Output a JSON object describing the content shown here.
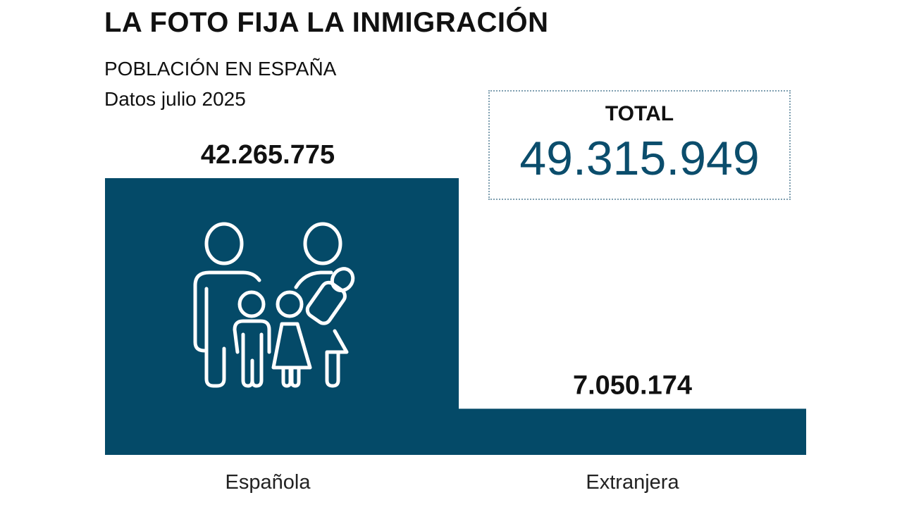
{
  "title": "LA FOTO FIJA LA INMIGRACIÓN",
  "subtitle": "POBLACIÓN EN ESPAÑA",
  "date_note": "Datos julio 2025",
  "total": {
    "label": "TOTAL",
    "value": "49.315.949"
  },
  "colors": {
    "bar": "#044a68",
    "total_value": "#0b4d6c"
  },
  "chart_data": {
    "type": "bar",
    "categories": [
      "Española",
      "Extranjera"
    ],
    "values": [
      42265775,
      7050174
    ],
    "value_labels": [
      "42.265.775",
      "7.050.174"
    ],
    "grid": false,
    "icon": "family-icon"
  }
}
